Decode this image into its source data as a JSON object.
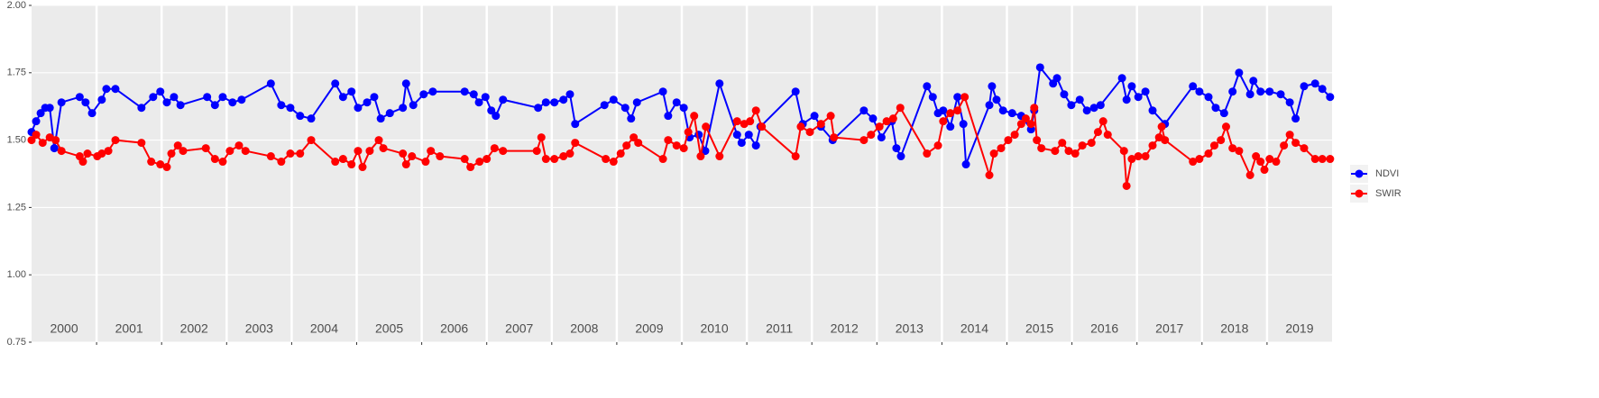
{
  "chart_data": {
    "type": "line",
    "grid": true,
    "legend_position": "right",
    "xlim": [
      2000,
      2020
    ],
    "ylim": [
      0.75,
      2.0
    ],
    "yticks": [
      {
        "value": 0.75,
        "label": "0.75"
      },
      {
        "value": 1.0,
        "label": "1.00"
      },
      {
        "value": 1.25,
        "label": "1.25"
      },
      {
        "value": 1.5,
        "label": "1.50"
      },
      {
        "value": 1.75,
        "label": "1.75"
      },
      {
        "value": 2.0,
        "label": "2.00"
      }
    ],
    "xticks": [
      {
        "value": 2000.5,
        "label": "2000"
      },
      {
        "value": 2001.5,
        "label": "2001"
      },
      {
        "value": 2002.5,
        "label": "2002"
      },
      {
        "value": 2003.5,
        "label": "2003"
      },
      {
        "value": 2004.5,
        "label": "2004"
      },
      {
        "value": 2005.5,
        "label": "2005"
      },
      {
        "value": 2006.5,
        "label": "2006"
      },
      {
        "value": 2007.5,
        "label": "2007"
      },
      {
        "value": 2008.5,
        "label": "2008"
      },
      {
        "value": 2009.5,
        "label": "2009"
      },
      {
        "value": 2010.5,
        "label": "2010"
      },
      {
        "value": 2011.5,
        "label": "2011"
      },
      {
        "value": 2012.5,
        "label": "2012"
      },
      {
        "value": 2013.5,
        "label": "2013"
      },
      {
        "value": 2014.5,
        "label": "2014"
      },
      {
        "value": 2015.5,
        "label": "2015"
      },
      {
        "value": 2016.5,
        "label": "2016"
      },
      {
        "value": 2017.5,
        "label": "2017"
      },
      {
        "value": 2018.5,
        "label": "2018"
      },
      {
        "value": 2019.5,
        "label": "2019"
      }
    ],
    "xgrid": [
      2001,
      2002,
      2003,
      2004,
      2005,
      2006,
      2007,
      2008,
      2009,
      2010,
      2011,
      2012,
      2013,
      2014,
      2015,
      2016,
      2017,
      2018,
      2019
    ],
    "series": [
      {
        "name": "NDVI",
        "color": "#0000ff",
        "x": [
          2000.0,
          2000.07,
          2000.14,
          2000.21,
          2000.28,
          2000.35,
          2000.46,
          2000.74,
          2000.83,
          2000.93,
          2001.08,
          2001.15,
          2001.29,
          2001.69,
          2001.87,
          2001.98,
          2002.08,
          2002.19,
          2002.29,
          2002.7,
          2002.82,
          2002.94,
          2003.09,
          2003.23,
          2003.68,
          2003.84,
          2003.98,
          2004.13,
          2004.3,
          2004.67,
          2004.79,
          2004.92,
          2005.02,
          2005.16,
          2005.27,
          2005.37,
          2005.51,
          2005.71,
          2005.76,
          2005.87,
          2006.03,
          2006.17,
          2006.66,
          2006.8,
          2006.88,
          2006.98,
          2007.07,
          2007.14,
          2007.25,
          2007.79,
          2007.91,
          2008.04,
          2008.18,
          2008.28,
          2008.36,
          2008.81,
          2008.95,
          2009.13,
          2009.22,
          2009.31,
          2009.71,
          2009.79,
          2009.92,
          2010.03,
          2010.12,
          2010.26,
          2010.36,
          2010.58,
          2010.85,
          2010.92,
          2011.03,
          2011.14,
          2011.21,
          2011.75,
          2011.86,
          2012.04,
          2012.14,
          2012.32,
          2012.8,
          2012.94,
          2013.07,
          2013.23,
          2013.3,
          2013.37,
          2013.77,
          2013.86,
          2013.94,
          2014.02,
          2014.13,
          2014.24,
          2014.33,
          2014.37,
          2014.73,
          2014.77,
          2014.84,
          2014.94,
          2015.08,
          2015.22,
          2015.37,
          2015.42,
          2015.51,
          2015.71,
          2015.77,
          2015.88,
          2015.99,
          2016.12,
          2016.23,
          2016.34,
          2016.44,
          2016.77,
          2016.84,
          2016.92,
          2017.02,
          2017.13,
          2017.24,
          2017.43,
          2017.86,
          2017.96,
          2018.1,
          2018.21,
          2018.34,
          2018.47,
          2018.57,
          2018.74,
          2018.79,
          2018.9,
          2019.04,
          2019.21,
          2019.35,
          2019.44,
          2019.57,
          2019.74,
          2019.85,
          2019.97
        ],
        "values": [
          1.53,
          1.57,
          1.6,
          1.62,
          1.62,
          1.47,
          1.64,
          1.66,
          1.64,
          1.6,
          1.65,
          1.69,
          1.69,
          1.62,
          1.66,
          1.68,
          1.64,
          1.66,
          1.63,
          1.66,
          1.63,
          1.66,
          1.64,
          1.65,
          1.71,
          1.63,
          1.62,
          1.59,
          1.58,
          1.71,
          1.66,
          1.68,
          1.62,
          1.64,
          1.66,
          1.58,
          1.6,
          1.62,
          1.71,
          1.63,
          1.67,
          1.68,
          1.68,
          1.67,
          1.64,
          1.66,
          1.61,
          1.59,
          1.65,
          1.62,
          1.64,
          1.64,
          1.65,
          1.67,
          1.56,
          1.63,
          1.65,
          1.62,
          1.58,
          1.64,
          1.68,
          1.59,
          1.64,
          1.62,
          1.51,
          1.52,
          1.46,
          1.71,
          1.52,
          1.49,
          1.52,
          1.48,
          1.55,
          1.68,
          1.56,
          1.59,
          1.55,
          1.5,
          1.61,
          1.58,
          1.51,
          1.57,
          1.47,
          1.44,
          1.7,
          1.66,
          1.6,
          1.61,
          1.55,
          1.66,
          1.56,
          1.41,
          1.63,
          1.7,
          1.65,
          1.61,
          1.6,
          1.59,
          1.54,
          1.61,
          1.77,
          1.71,
          1.73,
          1.67,
          1.63,
          1.65,
          1.61,
          1.62,
          1.63,
          1.73,
          1.65,
          1.7,
          1.66,
          1.68,
          1.61,
          1.56,
          1.7,
          1.68,
          1.66,
          1.62,
          1.6,
          1.68,
          1.75,
          1.67,
          1.72,
          1.68,
          1.68,
          1.67,
          1.64,
          1.58,
          1.7,
          1.71,
          1.69,
          1.66
        ]
      },
      {
        "name": "SWIR",
        "color": "#ff0000",
        "x": [
          2000.0,
          2000.07,
          2000.17,
          2000.28,
          2000.37,
          2000.46,
          2000.74,
          2000.79,
          2000.86,
          2001.01,
          2001.08,
          2001.18,
          2001.29,
          2001.69,
          2001.84,
          2001.98,
          2002.08,
          2002.15,
          2002.25,
          2002.33,
          2002.68,
          2002.82,
          2002.94,
          2003.05,
          2003.19,
          2003.29,
          2003.68,
          2003.84,
          2003.98,
          2004.13,
          2004.3,
          2004.67,
          2004.79,
          2004.92,
          2005.02,
          2005.09,
          2005.2,
          2005.34,
          2005.41,
          2005.71,
          2005.76,
          2005.85,
          2006.06,
          2006.14,
          2006.28,
          2006.66,
          2006.75,
          2006.89,
          2007.0,
          2007.12,
          2007.25,
          2007.77,
          2007.84,
          2007.91,
          2008.04,
          2008.18,
          2008.28,
          2008.36,
          2008.83,
          2008.95,
          2009.06,
          2009.15,
          2009.26,
          2009.33,
          2009.71,
          2009.79,
          2009.92,
          2010.03,
          2010.1,
          2010.19,
          2010.29,
          2010.37,
          2010.58,
          2010.85,
          2010.96,
          2011.05,
          2011.14,
          2011.23,
          2011.75,
          2011.83,
          2011.97,
          2012.14,
          2012.29,
          2012.34,
          2012.8,
          2012.91,
          2013.04,
          2013.15,
          2013.25,
          2013.36,
          2013.77,
          2013.94,
          2014.02,
          2014.13,
          2014.24,
          2014.35,
          2014.73,
          2014.8,
          2014.91,
          2015.02,
          2015.12,
          2015.22,
          2015.29,
          2015.37,
          2015.42,
          2015.46,
          2015.53,
          2015.74,
          2015.85,
          2015.95,
          2016.05,
          2016.16,
          2016.3,
          2016.4,
          2016.48,
          2016.55,
          2016.8,
          2016.84,
          2016.92,
          2017.02,
          2017.13,
          2017.24,
          2017.34,
          2017.38,
          2017.43,
          2017.86,
          2017.96,
          2018.1,
          2018.19,
          2018.29,
          2018.37,
          2018.47,
          2018.57,
          2018.74,
          2018.83,
          2018.9,
          2018.96,
          2019.04,
          2019.14,
          2019.26,
          2019.35,
          2019.44,
          2019.57,
          2019.74,
          2019.85,
          2019.97
        ],
        "values": [
          1.5,
          1.52,
          1.49,
          1.51,
          1.5,
          1.46,
          1.44,
          1.42,
          1.45,
          1.44,
          1.45,
          1.46,
          1.5,
          1.49,
          1.42,
          1.41,
          1.4,
          1.45,
          1.48,
          1.46,
          1.47,
          1.43,
          1.42,
          1.46,
          1.48,
          1.46,
          1.44,
          1.42,
          1.45,
          1.45,
          1.5,
          1.42,
          1.43,
          1.41,
          1.46,
          1.4,
          1.46,
          1.5,
          1.47,
          1.45,
          1.41,
          1.44,
          1.42,
          1.46,
          1.44,
          1.43,
          1.4,
          1.42,
          1.43,
          1.47,
          1.46,
          1.46,
          1.51,
          1.43,
          1.43,
          1.44,
          1.45,
          1.49,
          1.43,
          1.42,
          1.45,
          1.48,
          1.51,
          1.49,
          1.43,
          1.5,
          1.48,
          1.47,
          1.53,
          1.59,
          1.44,
          1.55,
          1.44,
          1.57,
          1.56,
          1.57,
          1.61,
          1.55,
          1.44,
          1.55,
          1.53,
          1.56,
          1.59,
          1.51,
          1.5,
          1.52,
          1.55,
          1.57,
          1.58,
          1.62,
          1.45,
          1.48,
          1.57,
          1.6,
          1.61,
          1.66,
          1.37,
          1.45,
          1.47,
          1.5,
          1.52,
          1.56,
          1.58,
          1.56,
          1.62,
          1.5,
          1.47,
          1.46,
          1.49,
          1.46,
          1.45,
          1.48,
          1.49,
          1.53,
          1.57,
          1.52,
          1.46,
          1.33,
          1.43,
          1.44,
          1.44,
          1.48,
          1.51,
          1.55,
          1.5,
          1.42,
          1.43,
          1.45,
          1.48,
          1.5,
          1.55,
          1.47,
          1.46,
          1.37,
          1.44,
          1.42,
          1.39,
          1.43,
          1.42,
          1.48,
          1.52,
          1.49,
          1.47,
          1.43,
          1.43,
          1.43
        ]
      }
    ]
  }
}
